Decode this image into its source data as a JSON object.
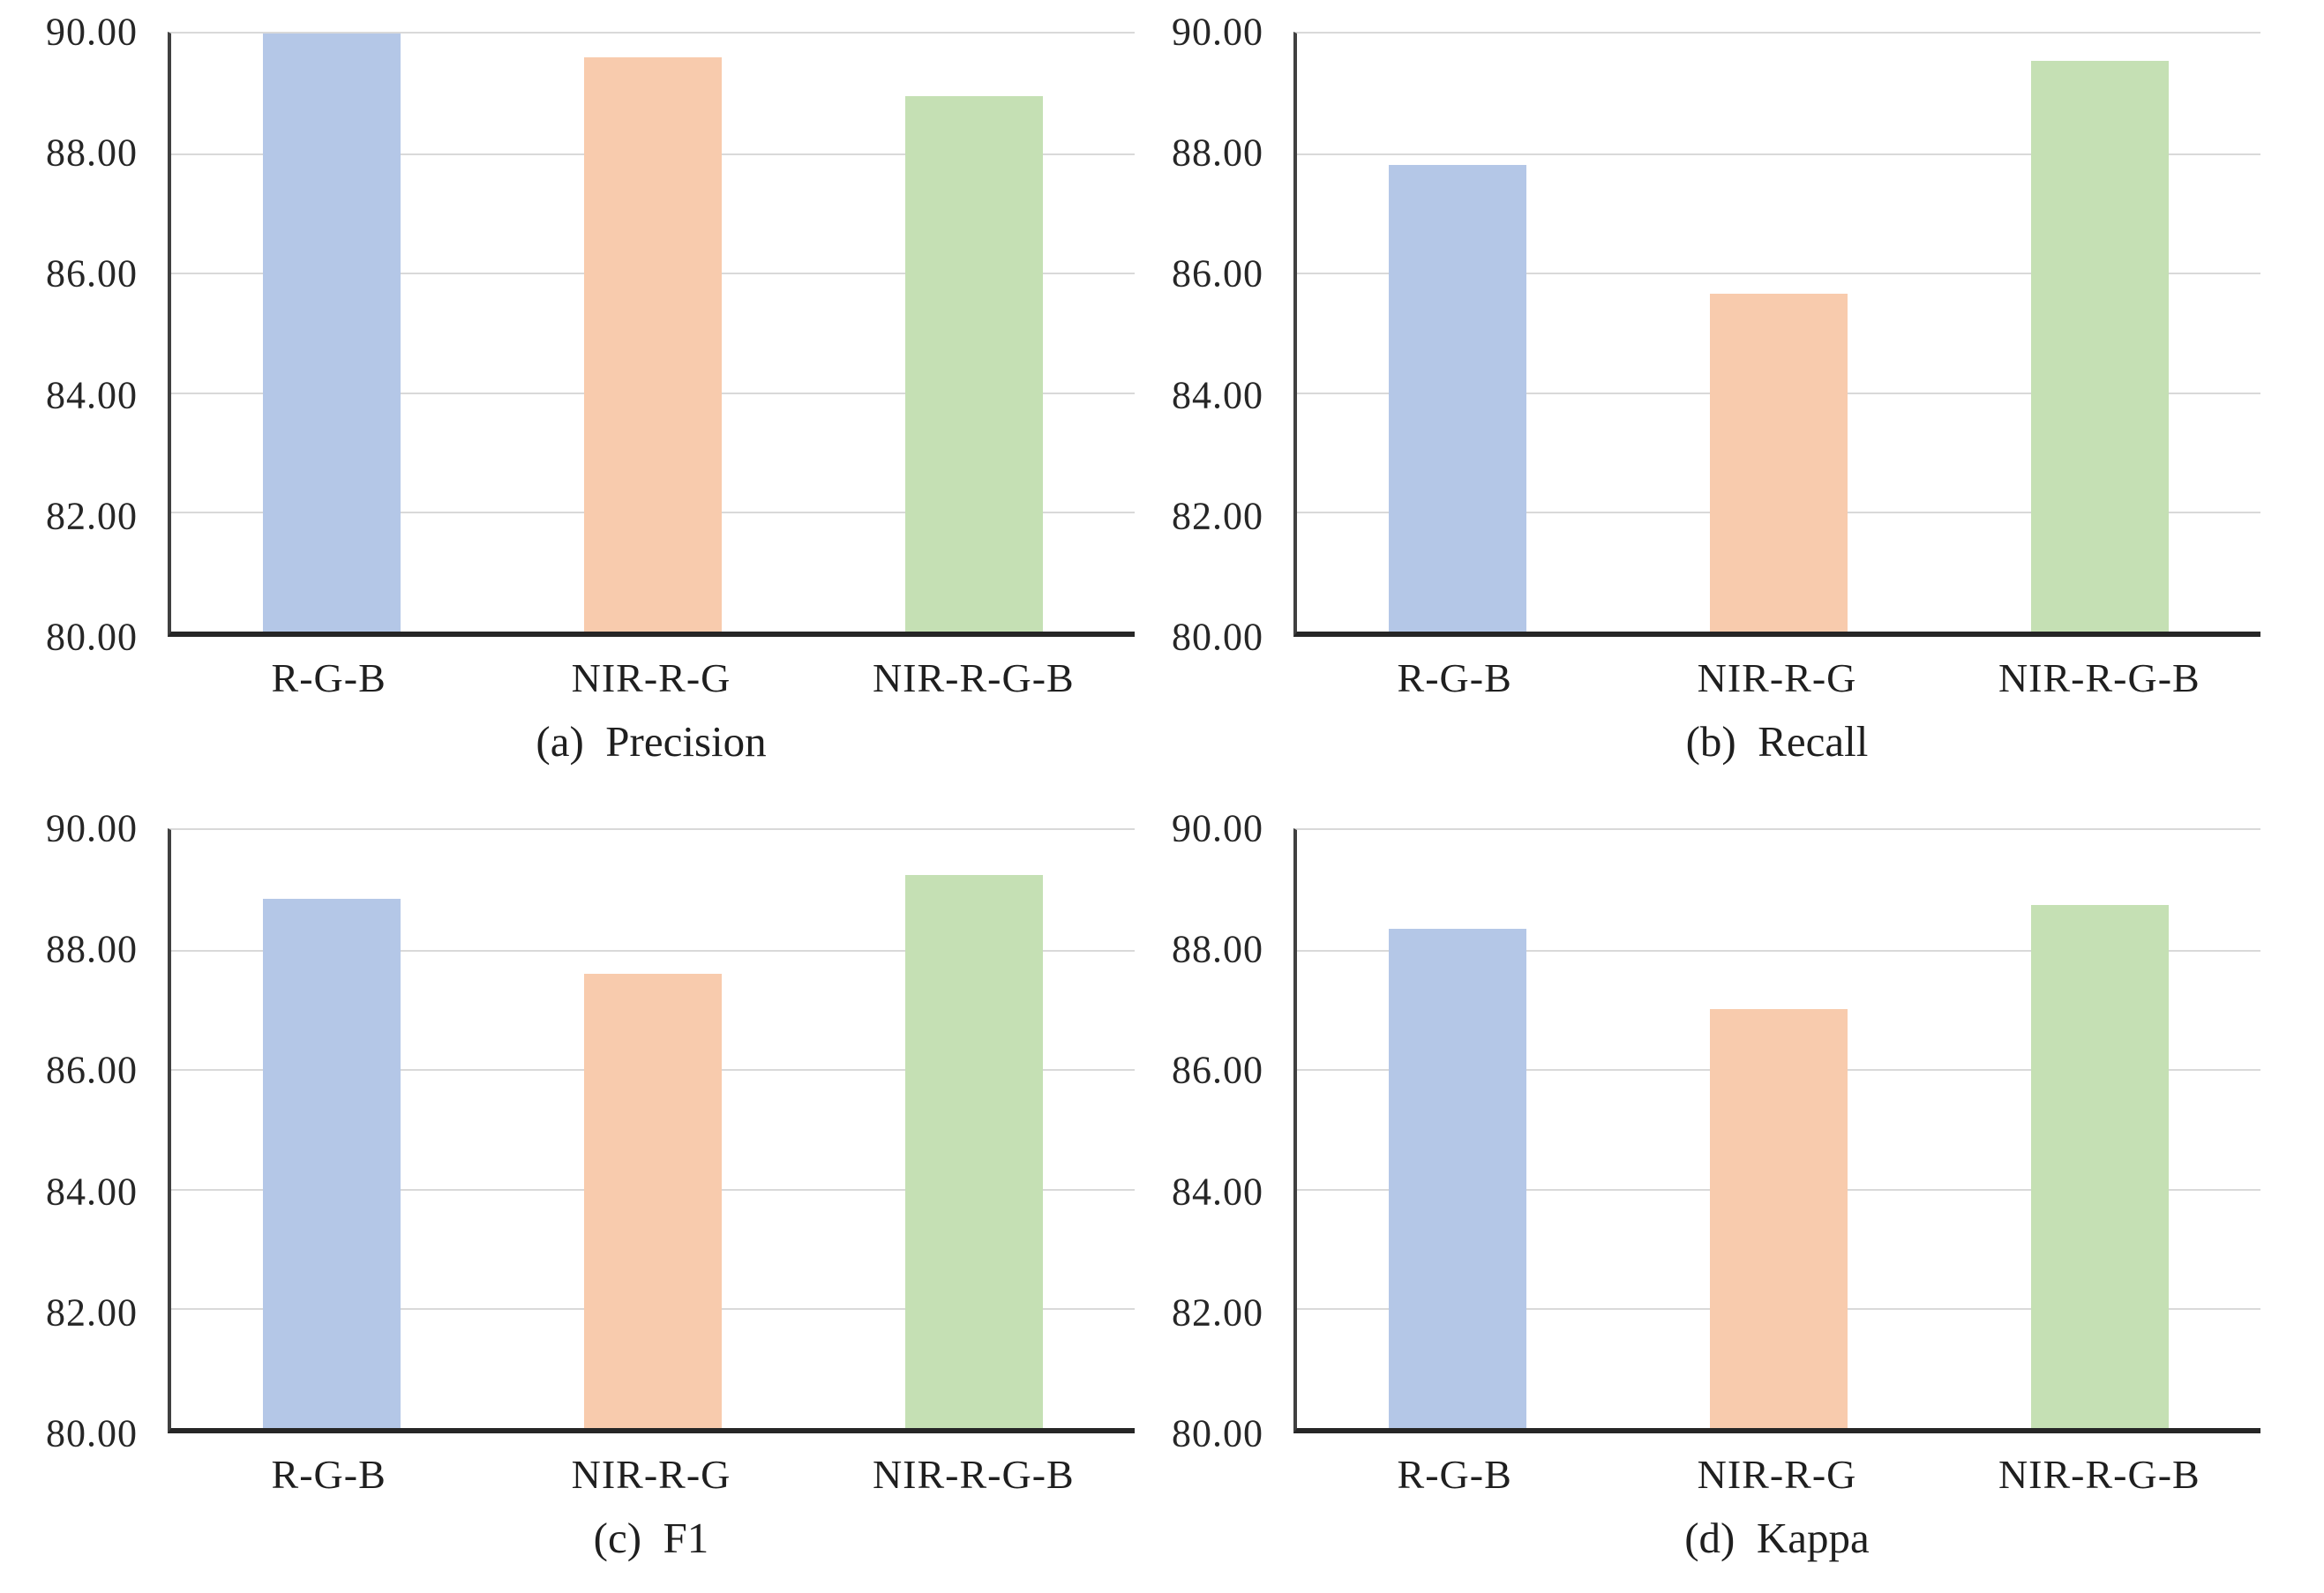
{
  "colors": {
    "bar_fills": [
      "#b4c7e7",
      "#f8cbad",
      "#c5e0b4"
    ],
    "gridline": "#d9d9d9",
    "axis_line": "#262626"
  },
  "chart_data": [
    {
      "type": "bar",
      "caption": "(a)  Precision",
      "metric": "Precision",
      "categories": [
        "R-G-B",
        "NIR-R-G",
        "NIR-R-G-B"
      ],
      "values": [
        90.0,
        89.6,
        88.95
      ],
      "ylim": [
        80,
        90
      ],
      "ytick_labels": [
        "90.00",
        "88.00",
        "86.00",
        "84.00",
        "82.00",
        "80.00"
      ],
      "grid": true,
      "legend": false
    },
    {
      "type": "bar",
      "caption": "(b)  Recall",
      "metric": "Recall",
      "categories": [
        "R-G-B",
        "NIR-R-G",
        "NIR-R-G-B"
      ],
      "values": [
        87.8,
        85.65,
        89.55
      ],
      "ylim": [
        80,
        90
      ],
      "ytick_labels": [
        "90.00",
        "88.00",
        "86.00",
        "84.00",
        "82.00",
        "80.00"
      ],
      "grid": true,
      "legend": false
    },
    {
      "type": "bar",
      "caption": "(c)  F1",
      "metric": "F1",
      "categories": [
        "R-G-B",
        "NIR-R-G",
        "NIR-R-G-B"
      ],
      "values": [
        88.85,
        87.6,
        89.25
      ],
      "ylim": [
        80,
        90
      ],
      "ytick_labels": [
        "90.00",
        "88.00",
        "86.00",
        "84.00",
        "82.00",
        "80.00"
      ],
      "grid": true,
      "legend": false
    },
    {
      "type": "bar",
      "caption": "(d)  Kappa",
      "metric": "Kappa",
      "categories": [
        "R-G-B",
        "NIR-R-G",
        "NIR-R-G-B"
      ],
      "values": [
        88.35,
        87.0,
        88.75
      ],
      "ylim": [
        80,
        90
      ],
      "ytick_labels": [
        "90.00",
        "88.00",
        "86.00",
        "84.00",
        "82.00",
        "80.00"
      ],
      "grid": true,
      "legend": false
    }
  ]
}
